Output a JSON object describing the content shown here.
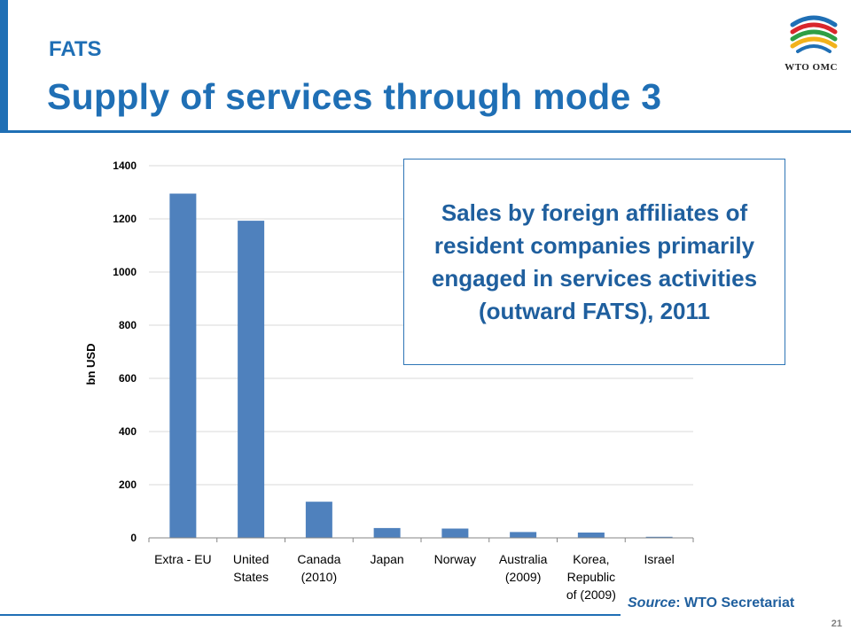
{
  "header": {
    "kicker": "FATS",
    "title": "Supply of services through mode 3"
  },
  "logo": {
    "icon": "wto-logo-icon",
    "text": "WTO OMC",
    "colors": [
      "#1F6FB5",
      "#D9262C",
      "#2E9E45",
      "#F2B21B"
    ]
  },
  "callout": {
    "text": "Sales by foreign affiliates of resident companies primarily engaged in services activities (outward FATS), 2011"
  },
  "footer": {
    "source_label": "Source",
    "source_rest": ": WTO Secretariat",
    "slide_number": "21"
  },
  "chart_data": {
    "type": "bar",
    "title": "",
    "xlabel": "",
    "ylabel": "bn USD",
    "ylim": [
      0,
      1400
    ],
    "yticks": [
      0,
      200,
      400,
      600,
      800,
      1000,
      1200,
      1400
    ],
    "categories": [
      "Extra - EU",
      "United\nStates",
      "Canada\n(2010)",
      "Japan",
      "Norway",
      "Australia\n(2009)",
      "Korea,\nRepublic\nof (2009)",
      "Israel"
    ],
    "values": [
      1295,
      1193,
      136,
      37,
      35,
      22,
      20,
      4
    ],
    "grid": true,
    "legend": "none",
    "bar_color": "#4F81BD"
  }
}
